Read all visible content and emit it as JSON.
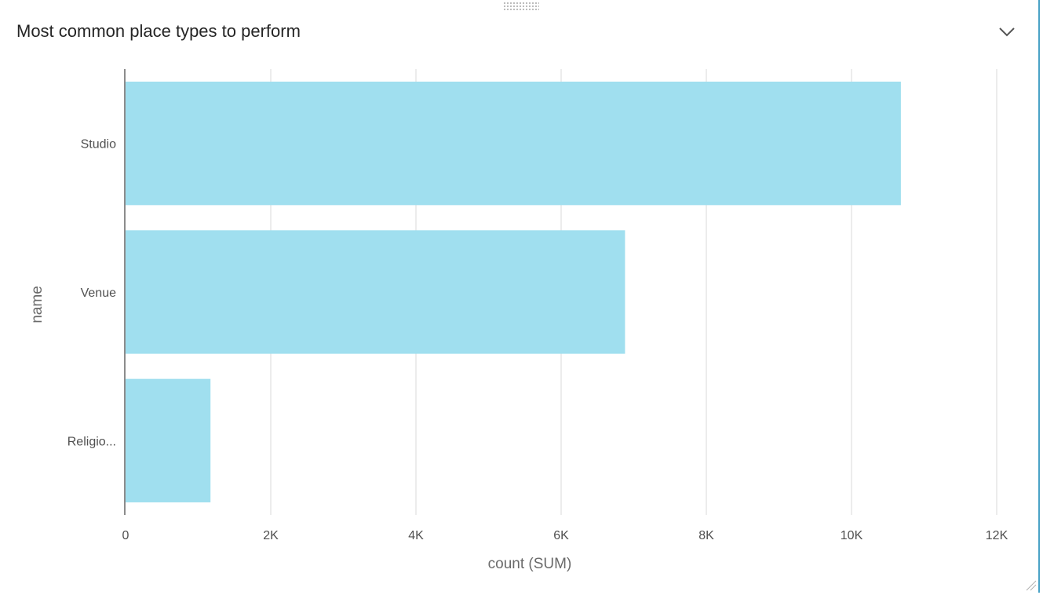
{
  "panel": {
    "title": "Most common place types to perform",
    "collapse_icon": "chevron-down-icon",
    "drag_icon": "drag-handle-icon",
    "resize_icon": "resize-grip-icon"
  },
  "colors": {
    "bar": "#a0dfef",
    "gridline": "#d9d9d9",
    "axis": "#8c8c8c",
    "accent_border": "#4aa3c7"
  },
  "chart_data": {
    "type": "bar",
    "orientation": "horizontal",
    "categories": [
      "Studio",
      "Venue",
      "Religio..."
    ],
    "values": [
      10680,
      6880,
      1170
    ],
    "xlabel": "count (SUM)",
    "ylabel": "name",
    "xlim": [
      0,
      12000
    ],
    "xticks": [
      0,
      2000,
      4000,
      6000,
      8000,
      10000,
      12000
    ],
    "xtick_labels": [
      "0",
      "2K",
      "4K",
      "6K",
      "8K",
      "10K",
      "12K"
    ],
    "grid": "vertical",
    "legend": "none"
  }
}
